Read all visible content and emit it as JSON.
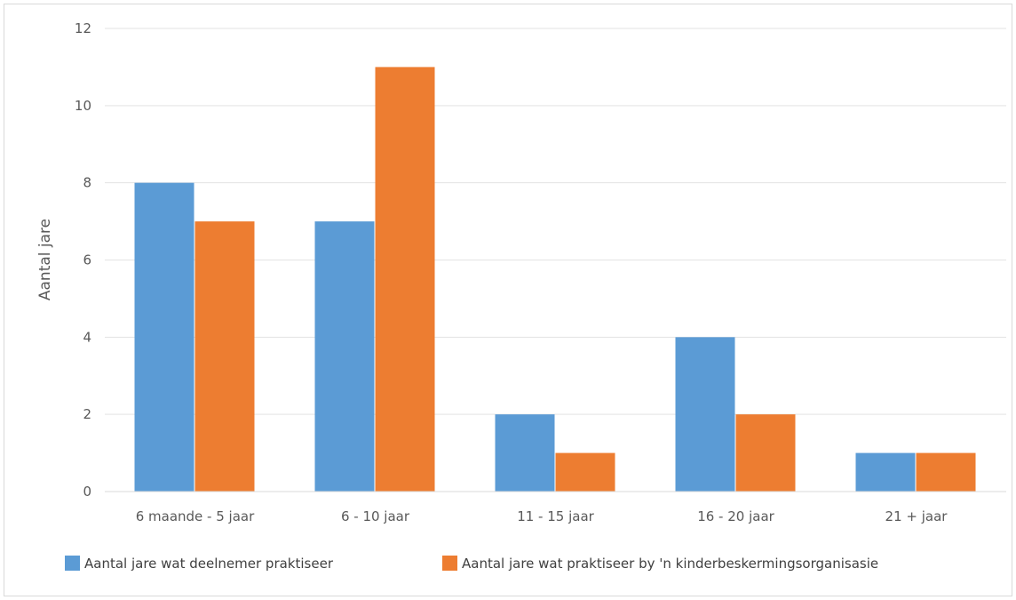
{
  "chart_data": {
    "type": "bar",
    "title": "",
    "xlabel": "",
    "ylabel": "Aantal jare",
    "ylim": [
      0,
      12
    ],
    "yticks": [
      0,
      2,
      4,
      6,
      8,
      10,
      12
    ],
    "grid": true,
    "legend_position": "bottom",
    "categories": [
      "6 maande - 5 jaar",
      "6 - 10 jaar",
      "11 - 15 jaar",
      "16 - 20 jaar",
      "21 + jaar"
    ],
    "series": [
      {
        "name": "Aantal jare wat deelnemer praktiseer",
        "color": "#5b9bd5",
        "values": [
          8,
          7,
          2,
          4,
          1
        ]
      },
      {
        "name": "Aantal jare wat praktiseer by 'n kinderbeskermingsorganisasie",
        "color": "#ed7d31",
        "values": [
          7,
          11,
          1,
          2,
          1
        ]
      }
    ]
  }
}
